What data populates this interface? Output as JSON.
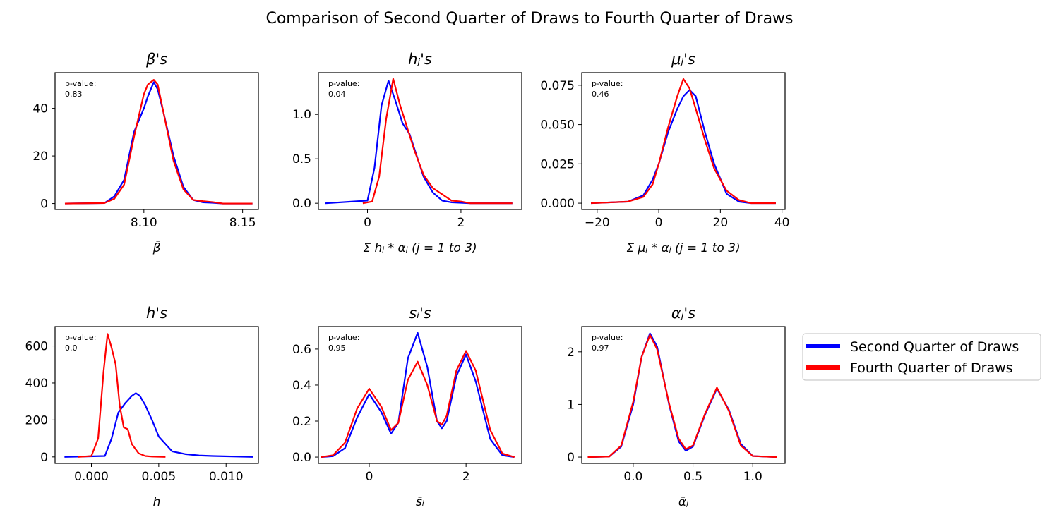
{
  "figure_title": "Comparison of Second Quarter of Draws to Fourth Quarter of Draws",
  "pvalue_label": "p-value:",
  "legend": [
    {
      "label": "Second Quarter of Draws",
      "color": "#0000ff"
    },
    {
      "label": "Fourth Quarter of Draws",
      "color": "#ff0000"
    }
  ],
  "chart_data": [
    {
      "type": "line",
      "title": "β's",
      "xlabel": "β̄",
      "ylabel": "",
      "pvalue": "0.83",
      "xlim": [
        8.055,
        8.158
      ],
      "ylim": [
        -2.5,
        55
      ],
      "xticks": [
        8.1,
        8.15
      ],
      "xtick_labels": [
        "8.10",
        "8.15"
      ],
      "yticks": [
        0,
        20,
        40
      ],
      "ytick_labels": [
        "0",
        "20",
        "40"
      ],
      "series": [
        {
          "name": "Second Quarter of Draws",
          "color": "#0000ff",
          "x": [
            8.06,
            8.08,
            8.085,
            8.09,
            8.095,
            8.1,
            8.102,
            8.105,
            8.107,
            8.11,
            8.115,
            8.12,
            8.125,
            8.13,
            8.135,
            8.14,
            8.15,
            8.155
          ],
          "y": [
            0,
            0.2,
            3,
            10,
            30,
            40,
            45,
            51,
            48,
            38,
            20,
            7,
            1.5,
            0.5,
            0.3,
            0,
            0,
            0
          ]
        },
        {
          "name": "Fourth Quarter of Draws",
          "color": "#ff0000",
          "x": [
            8.06,
            8.08,
            8.085,
            8.09,
            8.095,
            8.1,
            8.102,
            8.105,
            8.107,
            8.11,
            8.115,
            8.12,
            8.125,
            8.13,
            8.135,
            8.14,
            8.15,
            8.155
          ],
          "y": [
            0,
            0.2,
            2,
            8,
            28,
            46,
            50,
            52,
            50,
            38,
            18,
            6,
            1.5,
            1.0,
            0.6,
            0,
            0,
            0
          ]
        }
      ]
    },
    {
      "type": "line",
      "title": "hⱼ's",
      "xlabel": "Σ hⱼ * αⱼ (j = 1 to 3)",
      "ylabel": "",
      "pvalue": "0.04",
      "xlim": [
        -1.05,
        3.3
      ],
      "ylim": [
        -0.07,
        1.47
      ],
      "xticks": [
        0,
        2
      ],
      "xtick_labels": [
        "0",
        "2"
      ],
      "yticks": [
        0,
        0.5,
        1.0
      ],
      "ytick_labels": [
        "0.0",
        "0.5",
        "1.0"
      ],
      "series": [
        {
          "name": "Second Quarter of Draws",
          "color": "#0000ff",
          "x": [
            -0.9,
            0,
            0.15,
            0.3,
            0.45,
            0.6,
            0.75,
            0.9,
            1.0,
            1.2,
            1.4,
            1.6,
            1.8,
            2.2,
            3.1
          ],
          "y": [
            0,
            0.03,
            0.4,
            1.1,
            1.38,
            1.15,
            0.9,
            0.78,
            0.62,
            0.3,
            0.12,
            0.03,
            0.01,
            0,
            0
          ]
        },
        {
          "name": "Fourth Quarter of Draws",
          "color": "#ff0000",
          "x": [
            -0.1,
            0.1,
            0.25,
            0.4,
            0.55,
            0.7,
            0.85,
            1.0,
            1.2,
            1.4,
            1.6,
            1.8,
            2.0,
            2.2,
            3.1
          ],
          "y": [
            0,
            0.02,
            0.3,
            0.95,
            1.4,
            1.1,
            0.85,
            0.6,
            0.32,
            0.17,
            0.1,
            0.03,
            0.02,
            0,
            0
          ]
        }
      ]
    },
    {
      "type": "line",
      "title": "μⱼ's",
      "xlabel": "Σ μⱼ * αⱼ (j = 1 to 3)",
      "ylabel": "",
      "pvalue": "0.46",
      "xlim": [
        -25,
        41
      ],
      "ylim": [
        -0.004,
        0.083
      ],
      "xticks": [
        -20,
        0,
        20,
        40
      ],
      "xtick_labels": [
        "−20",
        "0",
        "20",
        "40"
      ],
      "yticks": [
        0,
        0.025,
        0.05,
        0.075
      ],
      "ytick_labels": [
        "0.000",
        "0.025",
        "0.050",
        "0.075"
      ],
      "series": [
        {
          "name": "Second Quarter of Draws",
          "color": "#0000ff",
          "x": [
            -22,
            -10,
            -5,
            -2,
            0,
            3,
            6,
            8,
            10,
            12,
            15,
            18,
            22,
            26,
            30,
            38
          ],
          "y": [
            0,
            0.001,
            0.005,
            0.015,
            0.025,
            0.045,
            0.06,
            0.068,
            0.072,
            0.068,
            0.045,
            0.025,
            0.006,
            0.001,
            0,
            0
          ]
        },
        {
          "name": "Fourth Quarter of Draws",
          "color": "#ff0000",
          "x": [
            -22,
            -10,
            -5,
            -2,
            0,
            3,
            6,
            8,
            10,
            12,
            15,
            18,
            22,
            26,
            30,
            38
          ],
          "y": [
            0,
            0.001,
            0.004,
            0.012,
            0.025,
            0.048,
            0.068,
            0.079,
            0.073,
            0.06,
            0.04,
            0.022,
            0.008,
            0.002,
            0,
            0
          ]
        }
      ]
    },
    {
      "type": "line",
      "title": "h's",
      "xlabel": "h",
      "ylabel": "",
      "pvalue": "0.0",
      "xlim": [
        -0.0027,
        0.0124
      ],
      "ylim": [
        -35,
        705
      ],
      "xticks": [
        0.0,
        0.005,
        0.01
      ],
      "xtick_labels": [
        "0.000",
        "0.005",
        "0.010"
      ],
      "yticks": [
        0,
        200,
        400,
        600
      ],
      "ytick_labels": [
        "0",
        "200",
        "400",
        "600"
      ],
      "series": [
        {
          "name": "Second Quarter of Draws",
          "color": "#0000ff",
          "x": [
            -0.002,
            0.001,
            0.0015,
            0.002,
            0.0025,
            0.003,
            0.0033,
            0.0036,
            0.004,
            0.0045,
            0.005,
            0.006,
            0.007,
            0.008,
            0.009,
            0.012
          ],
          "y": [
            0,
            5,
            100,
            240,
            290,
            330,
            345,
            330,
            280,
            200,
            110,
            30,
            15,
            8,
            5,
            0
          ]
        },
        {
          "name": "Fourth Quarter of Draws",
          "color": "#ff0000",
          "x": [
            -0.001,
            0.0,
            0.0005,
            0.0009,
            0.0012,
            0.0015,
            0.0018,
            0.0021,
            0.0024,
            0.0027,
            0.003,
            0.0035,
            0.004,
            0.0045,
            0.0055
          ],
          "y": [
            0,
            5,
            100,
            460,
            665,
            590,
            500,
            280,
            160,
            150,
            70,
            20,
            5,
            2,
            0
          ]
        }
      ]
    },
    {
      "type": "line",
      "title": "sᵢ's",
      "xlabel": "s̄ᵢ",
      "ylabel": "",
      "pvalue": "0.95",
      "xlim": [
        -1.05,
        3.15
      ],
      "ylim": [
        -0.035,
        0.725
      ],
      "xticks": [
        0,
        2
      ],
      "xtick_labels": [
        "0",
        "2"
      ],
      "yticks": [
        0,
        0.2,
        0.4,
        0.6
      ],
      "ytick_labels": [
        "0.0",
        "0.2",
        "0.4",
        "0.6"
      ],
      "series": [
        {
          "name": "Second Quarter of Draws",
          "color": "#0000ff",
          "x": [
            -1.0,
            -0.75,
            -0.5,
            -0.25,
            0.0,
            0.25,
            0.45,
            0.6,
            0.8,
            1.0,
            1.2,
            1.4,
            1.5,
            1.6,
            1.8,
            2.0,
            2.2,
            2.5,
            2.75,
            3.0
          ],
          "y": [
            0,
            0.005,
            0.05,
            0.22,
            0.35,
            0.25,
            0.13,
            0.19,
            0.55,
            0.69,
            0.5,
            0.2,
            0.16,
            0.2,
            0.45,
            0.57,
            0.42,
            0.1,
            0.01,
            0
          ]
        },
        {
          "name": "Fourth Quarter of Draws",
          "color": "#ff0000",
          "x": [
            -1.0,
            -0.75,
            -0.5,
            -0.25,
            0.0,
            0.25,
            0.45,
            0.6,
            0.8,
            1.0,
            1.2,
            1.4,
            1.5,
            1.6,
            1.8,
            2.0,
            2.2,
            2.5,
            2.75,
            3.0
          ],
          "y": [
            0,
            0.01,
            0.08,
            0.27,
            0.38,
            0.28,
            0.15,
            0.19,
            0.43,
            0.53,
            0.4,
            0.2,
            0.18,
            0.23,
            0.48,
            0.59,
            0.48,
            0.15,
            0.02,
            0
          ]
        }
      ]
    },
    {
      "type": "line",
      "title": "αⱼ's",
      "xlabel": "ᾱⱼ",
      "ylabel": "",
      "pvalue": "0.97",
      "xlim": [
        -0.43,
        1.27
      ],
      "ylim": [
        -0.12,
        2.48
      ],
      "xticks": [
        0.0,
        0.5,
        1.0
      ],
      "xtick_labels": [
        "0.0",
        "0.5",
        "1.0"
      ],
      "yticks": [
        0,
        1,
        2
      ],
      "ytick_labels": [
        "0",
        "1",
        "2"
      ],
      "series": [
        {
          "name": "Second Quarter of Draws",
          "color": "#0000ff",
          "x": [
            -0.38,
            -0.2,
            -0.1,
            0.0,
            0.07,
            0.14,
            0.2,
            0.3,
            0.38,
            0.44,
            0.5,
            0.6,
            0.7,
            0.8,
            0.9,
            1.0,
            1.2
          ],
          "y": [
            0,
            0.01,
            0.2,
            1.0,
            1.9,
            2.35,
            2.1,
            1.0,
            0.3,
            0.12,
            0.2,
            0.8,
            1.3,
            0.9,
            0.25,
            0.02,
            0
          ]
        },
        {
          "name": "Fourth Quarter of Draws",
          "color": "#ff0000",
          "x": [
            -0.38,
            -0.2,
            -0.1,
            0.0,
            0.07,
            0.14,
            0.2,
            0.3,
            0.38,
            0.44,
            0.5,
            0.6,
            0.7,
            0.8,
            0.9,
            1.0,
            1.2
          ],
          "y": [
            0,
            0.01,
            0.22,
            1.05,
            1.9,
            2.32,
            2.05,
            1.02,
            0.35,
            0.15,
            0.22,
            0.82,
            1.32,
            0.88,
            0.22,
            0.02,
            0
          ]
        }
      ]
    }
  ]
}
